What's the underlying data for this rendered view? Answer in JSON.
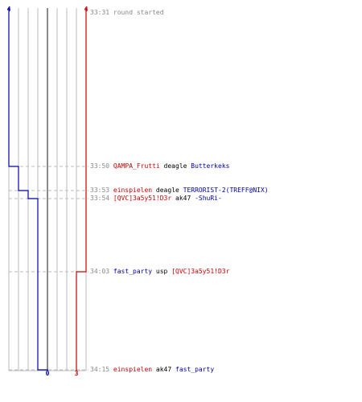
{
  "colors": {
    "team_t": "#cc0000",
    "team_ct": "#0000aa",
    "grid": "#bbbbbb",
    "center": "#666666",
    "dash": "#bbbbbb",
    "time": "#888888",
    "background": "#ffffff"
  },
  "teams": {
    "ct": {
      "start_count": "4",
      "end_count": "0"
    },
    "t": {
      "start_count": "4",
      "end_count": "3"
    }
  },
  "events": [
    {
      "time": "33:31",
      "text": "round started"
    },
    {
      "time": "33:50",
      "killer": "QAMPA_Frutti",
      "killer_team": "t",
      "weapon": "deagle",
      "victim": "Butterkeks",
      "victim_team": "ct"
    },
    {
      "time": "33:53",
      "killer": "einspielen",
      "killer_team": "t",
      "weapon": "deagle",
      "victim": "TERRORIST-2(TREFF@NIX)",
      "victim_team": "ct"
    },
    {
      "time": "33:54",
      "killer": "[QVC]3a5y51!D3r",
      "killer_team": "t",
      "weapon": "ak47",
      "victim": "-ShuRi-",
      "victim_team": "ct"
    },
    {
      "time": "34:03",
      "killer": "fast_party",
      "killer_team": "ct",
      "weapon": "usp",
      "victim": "[QVC]3a5y51!D3r",
      "victim_team": "t"
    },
    {
      "time": "34:15",
      "killer": "einspielen",
      "killer_team": "t",
      "weapon": "ak47",
      "victim": "fast_party",
      "victim_team": "ct"
    }
  ]
}
